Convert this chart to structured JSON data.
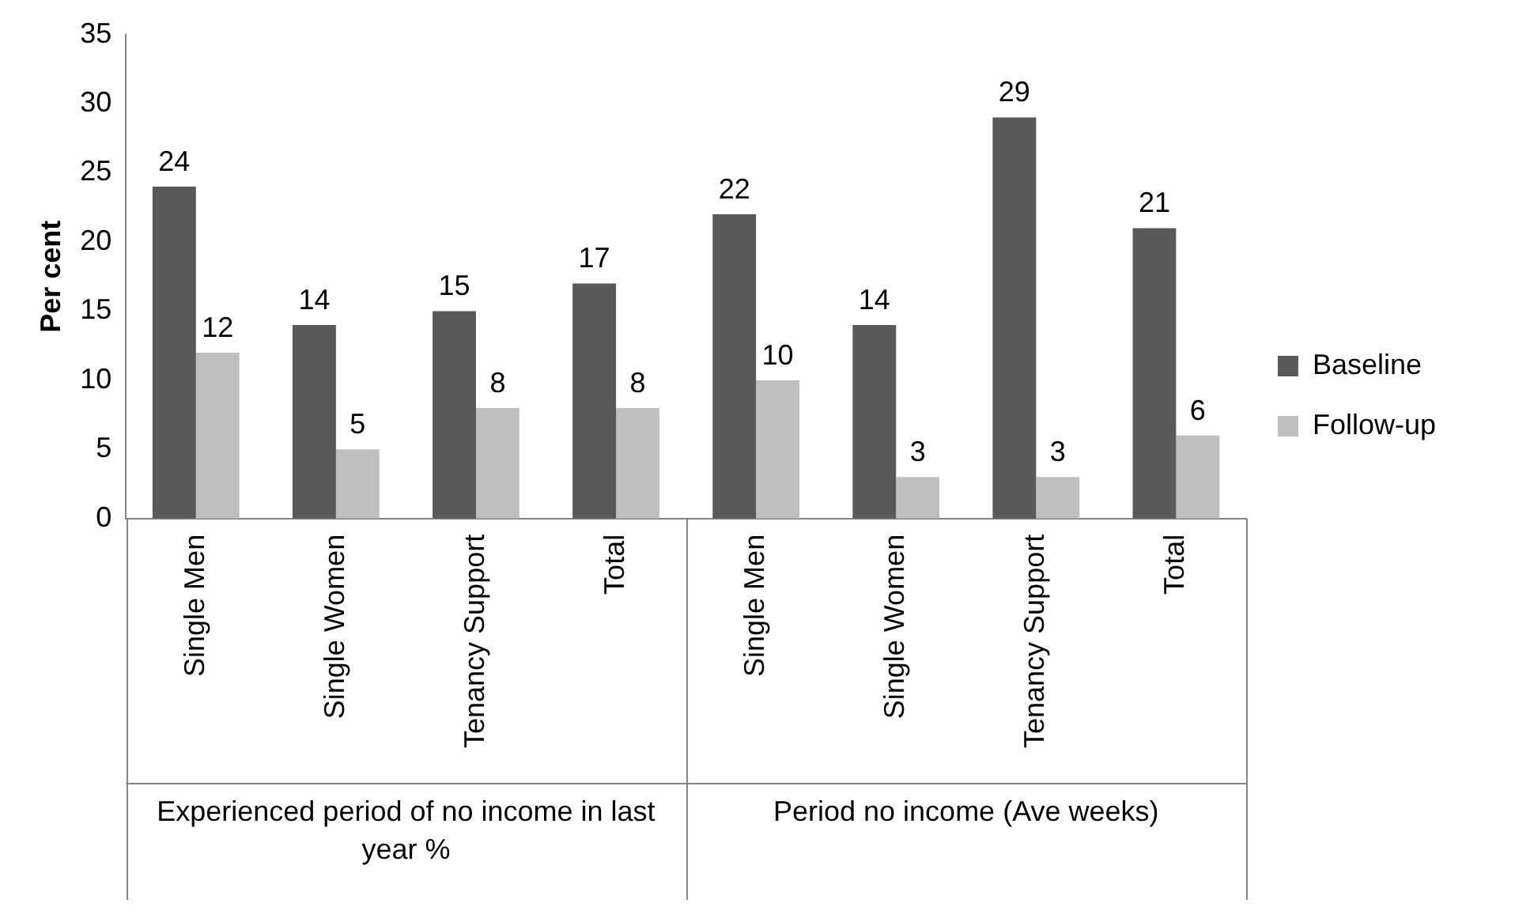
{
  "chart_data": {
    "type": "bar",
    "ylabel": "Per cent",
    "categories": [
      "Single Men",
      "Single Women",
      "Tenancy Support",
      "Total",
      "Single Men",
      "Single Women",
      "Tenancy Support",
      "Total"
    ],
    "series": [
      {
        "name": "Baseline",
        "color": "#595959",
        "values": [
          24,
          14,
          15,
          17,
          22,
          14,
          29,
          21
        ]
      },
      {
        "name": "Follow-up",
        "color": "#bfbfbf",
        "values": [
          12,
          5,
          8,
          8,
          10,
          3,
          3,
          6
        ]
      }
    ],
    "ylim": [
      0,
      35
    ],
    "yticks": [
      0,
      5,
      10,
      15,
      20,
      25,
      30,
      35
    ],
    "grid": false,
    "legend": "right",
    "data_labels": true,
    "annotations": [
      "Experienced period of no income in last year %",
      "Period no income (Ave weeks)"
    ]
  }
}
